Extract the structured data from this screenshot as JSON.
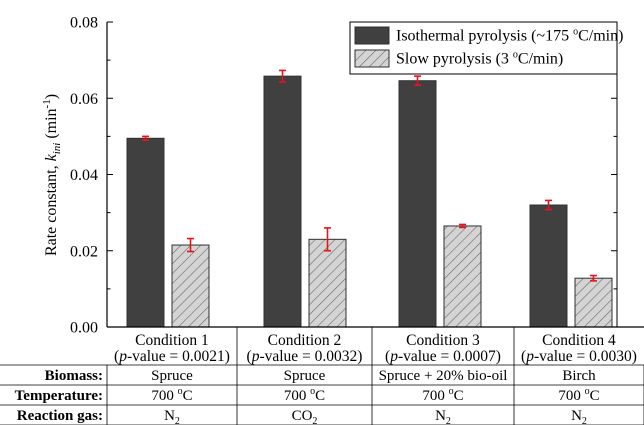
{
  "chart_data": {
    "type": "bar",
    "ylabel_main": "Rate constant, ",
    "ylabel_var": "k",
    "ylabel_sub": "ini",
    "ylabel_unit_open": " (min",
    "ylabel_unit_sup": "-1",
    "ylabel_unit_close": ")",
    "ylim": [
      0,
      0.08
    ],
    "yticks": [
      "0.00",
      "0.02",
      "0.04",
      "0.06",
      "0.08"
    ],
    "ytick_values": [
      0,
      0.02,
      0.04,
      0.06,
      0.08
    ],
    "legend_position": "top-right",
    "categories": [
      "Condition 1",
      "Condition 2",
      "Condition 3",
      "Condition 4"
    ],
    "category_pvalues": [
      "0.0021",
      "0.0032",
      "0.0007",
      "0.0030"
    ],
    "pvalue_prefix": "(",
    "pvalue_var": "p",
    "pvalue_mid": "-value = ",
    "pvalue_suffix": ")",
    "series": [
      {
        "name_prefix": "Isothermal pyrolysis (~175 ",
        "name_sup": "o",
        "name_suffix": "C/min)",
        "color": "#404040",
        "pattern": "solid",
        "values": [
          0.0495,
          0.0658,
          0.0646,
          0.032
        ],
        "errors": [
          0.0005,
          0.0015,
          0.0012,
          0.0012
        ]
      },
      {
        "name_prefix": "Slow pyrolysis (3 ",
        "name_sup": "o",
        "name_suffix": "C/min)",
        "color": "#bdbdbd",
        "pattern": "hatched",
        "values": [
          0.0215,
          0.023,
          0.0265,
          0.0128
        ],
        "errors": [
          0.0017,
          0.003,
          0.0004,
          0.0007
        ]
      }
    ],
    "error_bar_color": "#e8141b"
  },
  "table": {
    "rows": [
      {
        "header": "Biomass:",
        "cells": [
          {
            "text": "Spruce"
          },
          {
            "text": "Spruce"
          },
          {
            "text": "Spruce + 20% bio-oil"
          },
          {
            "text": "Birch"
          }
        ]
      },
      {
        "header": "Temperature:",
        "cells": [
          {
            "text": "700 ",
            "sup": "o",
            "tail": "C"
          },
          {
            "text": "700 ",
            "sup": "o",
            "tail": "C"
          },
          {
            "text": "700 ",
            "sup": "o",
            "tail": "C"
          },
          {
            "text": "700 ",
            "sup": "o",
            "tail": "C"
          }
        ]
      },
      {
        "header": "Reaction gas:",
        "cells": [
          {
            "text": "N",
            "sub": "2"
          },
          {
            "text": "CO",
            "sub": "2"
          },
          {
            "text": "N",
            "sub": "2"
          },
          {
            "text": "N",
            "sub": "2"
          }
        ]
      }
    ]
  }
}
